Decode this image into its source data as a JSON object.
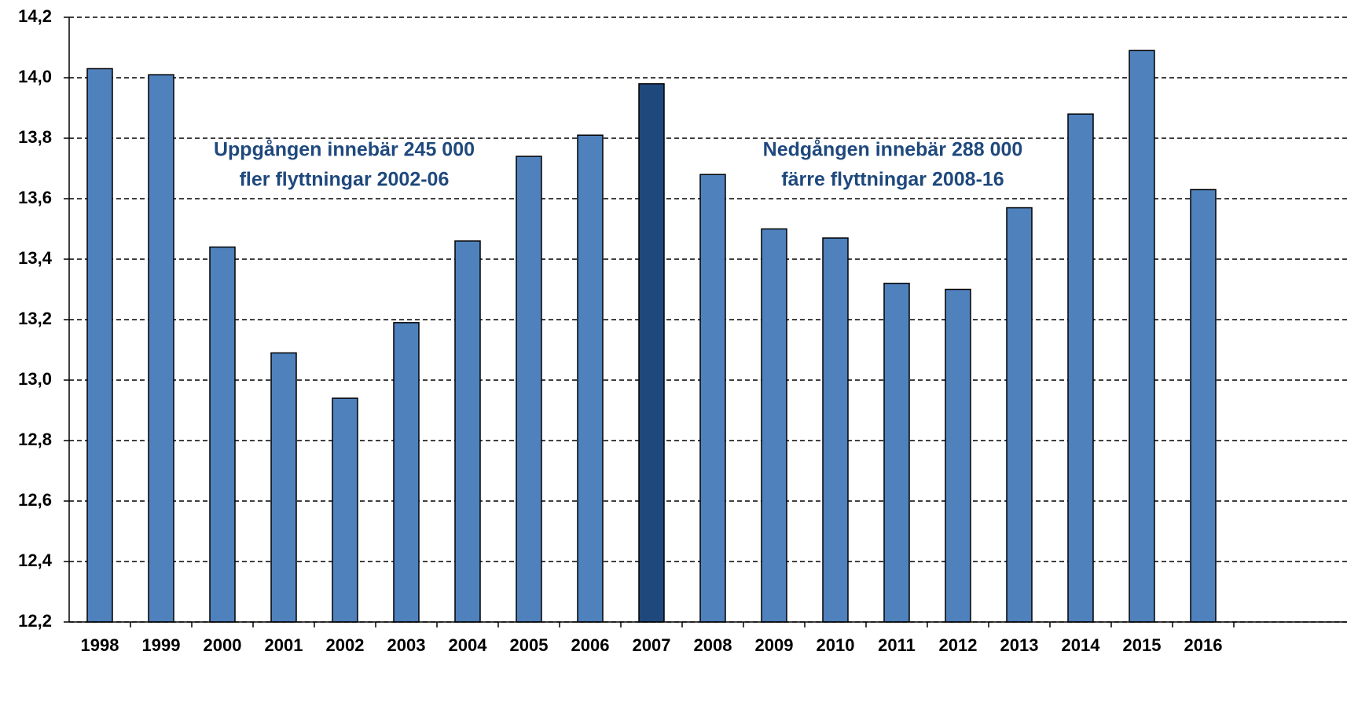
{
  "chart_data": {
    "type": "bar",
    "categories": [
      "1998",
      "1999",
      "2000",
      "2001",
      "2002",
      "2003",
      "2004",
      "2005",
      "2006",
      "2007",
      "2008",
      "2009",
      "2010",
      "2011",
      "2012",
      "2013",
      "2014",
      "2015",
      "2016"
    ],
    "values": [
      14.03,
      14.01,
      13.44,
      13.09,
      12.94,
      13.19,
      13.46,
      13.74,
      13.81,
      13.98,
      13.68,
      13.5,
      13.47,
      13.32,
      13.3,
      13.57,
      13.88,
      14.09,
      13.63
    ],
    "colors": [
      "#4f81bd",
      "#4f81bd",
      "#4f81bd",
      "#4f81bd",
      "#4f81bd",
      "#4f81bd",
      "#4f81bd",
      "#4f81bd",
      "#4f81bd",
      "#1f497d",
      "#4f81bd",
      "#4f81bd",
      "#4f81bd",
      "#4f81bd",
      "#4f81bd",
      "#4f81bd",
      "#4f81bd",
      "#4f81bd",
      "#4f81bd"
    ],
    "ylim": [
      12.2,
      14.2
    ],
    "yticks": [
      {
        "value": 12.2,
        "label": "12,2"
      },
      {
        "value": 12.4,
        "label": "12,4"
      },
      {
        "value": 12.6,
        "label": "12,6"
      },
      {
        "value": 12.8,
        "label": "12,8"
      },
      {
        "value": 13.0,
        "label": "13,0"
      },
      {
        "value": 13.2,
        "label": "13,2"
      },
      {
        "value": 13.4,
        "label": "13,4"
      },
      {
        "value": 13.6,
        "label": "13,6"
      },
      {
        "value": 13.8,
        "label": "13,8"
      },
      {
        "value": 14.0,
        "label": "14,0"
      },
      {
        "value": 14.2,
        "label": "14,2"
      }
    ],
    "grid": true,
    "annotations": [
      [
        "Uppgången innebär 245 000",
        "fler flyttningar 2002-06"
      ],
      [
        "Nedgången innebär 288 000",
        "färre flyttningar 2008-16"
      ]
    ]
  }
}
